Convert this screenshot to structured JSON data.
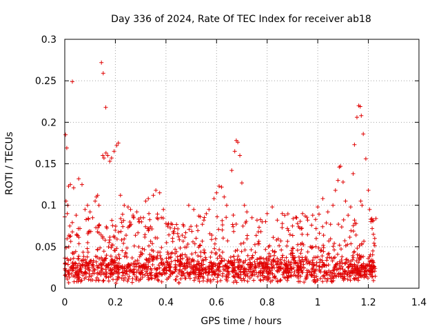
{
  "chart_data": {
    "type": "scatter",
    "title": "Day 336 of 2024, Rate Of TEC Index for receiver ab18",
    "xlabel": "GPS time / hours",
    "ylabel": "ROTI / TECUs",
    "xlim": [
      0,
      1.4
    ],
    "ylim": [
      0,
      0.3
    ],
    "xticks": [
      0,
      0.2,
      0.4,
      0.6,
      0.8,
      1,
      1.2,
      1.4
    ],
    "xtick_labels": [
      "0",
      "0.2",
      "0.4",
      "0.6",
      "0.8",
      "1",
      "1.2",
      "1.4"
    ],
    "yticks": [
      0,
      0.05,
      0.1,
      0.15,
      0.2,
      0.25,
      0.3
    ],
    "ytick_labels": [
      "0",
      "0.05",
      "0.1",
      "0.15",
      "0.2",
      "0.25",
      "0.3"
    ],
    "grid": true,
    "marker": "+",
    "marker_color": "#e00000",
    "series": [
      {
        "name": "ROTI",
        "points": [
          [
            0.003,
            0.185
          ],
          [
            0.008,
            0.169
          ],
          [
            0.005,
            0.105
          ],
          [
            0.012,
            0.1
          ],
          [
            0.015,
            0.123
          ],
          [
            0.022,
            0.125
          ],
          [
            0.03,
            0.249
          ],
          [
            0.035,
            0.121
          ],
          [
            0.055,
            0.132
          ],
          [
            0.068,
            0.125
          ],
          [
            0.01,
            0.09
          ],
          [
            0.02,
            0.075
          ],
          [
            0.03,
            0.068
          ],
          [
            0.045,
            0.088
          ],
          [
            0.06,
            0.072
          ],
          [
            0.08,
            0.095
          ],
          [
            0.09,
            0.1
          ],
          [
            0.1,
            0.092
          ],
          [
            0.11,
            0.085
          ],
          [
            0.12,
            0.105
          ],
          [
            0.125,
            0.11
          ],
          [
            0.13,
            0.112
          ],
          [
            0.135,
            0.1
          ],
          [
            0.145,
            0.272
          ],
          [
            0.152,
            0.259
          ],
          [
            0.162,
            0.218
          ],
          [
            0.15,
            0.16
          ],
          [
            0.155,
            0.157
          ],
          [
            0.163,
            0.163
          ],
          [
            0.17,
            0.16
          ],
          [
            0.178,
            0.153
          ],
          [
            0.185,
            0.157
          ],
          [
            0.195,
            0.165
          ],
          [
            0.205,
            0.172
          ],
          [
            0.212,
            0.175
          ],
          [
            0.15,
            0.062
          ],
          [
            0.16,
            0.058
          ],
          [
            0.175,
            0.055
          ],
          [
            0.19,
            0.052
          ],
          [
            0.205,
            0.048
          ],
          [
            0.22,
            0.112
          ],
          [
            0.235,
            0.1
          ],
          [
            0.25,
            0.098
          ],
          [
            0.26,
            0.095
          ],
          [
            0.27,
            0.088
          ],
          [
            0.285,
            0.092
          ],
          [
            0.3,
            0.085
          ],
          [
            0.32,
            0.105
          ],
          [
            0.33,
            0.108
          ],
          [
            0.35,
            0.112
          ],
          [
            0.36,
            0.118
          ],
          [
            0.375,
            0.115
          ],
          [
            0.39,
            0.095
          ],
          [
            0.4,
            0.078
          ],
          [
            0.41,
            0.078
          ],
          [
            0.42,
            0.078
          ],
          [
            0.43,
            0.066
          ],
          [
            0.45,
            0.062
          ],
          [
            0.47,
            0.075
          ],
          [
            0.49,
            0.1
          ],
          [
            0.51,
            0.095
          ],
          [
            0.53,
            0.087
          ],
          [
            0.55,
            0.082
          ],
          [
            0.57,
            0.095
          ],
          [
            0.59,
            0.108
          ],
          [
            0.6,
            0.115
          ],
          [
            0.61,
            0.123
          ],
          [
            0.62,
            0.122
          ],
          [
            0.63,
            0.11
          ],
          [
            0.64,
            0.1
          ],
          [
            0.66,
            0.142
          ],
          [
            0.672,
            0.165
          ],
          [
            0.678,
            0.178
          ],
          [
            0.684,
            0.176
          ],
          [
            0.692,
            0.16
          ],
          [
            0.7,
            0.127
          ],
          [
            0.71,
            0.1
          ],
          [
            0.72,
            0.092
          ],
          [
            0.74,
            0.085
          ],
          [
            0.76,
            0.082
          ],
          [
            0.78,
            0.08
          ],
          [
            0.8,
            0.09
          ],
          [
            0.82,
            0.098
          ],
          [
            0.84,
            0.082
          ],
          [
            0.86,
            0.078
          ],
          [
            0.88,
            0.072
          ],
          [
            0.9,
            0.075
          ],
          [
            0.92,
            0.078
          ],
          [
            0.94,
            0.09
          ],
          [
            0.96,
            0.082
          ],
          [
            0.98,
            0.088
          ],
          [
            1.0,
            0.098
          ],
          [
            1.02,
            0.108
          ],
          [
            1.04,
            0.092
          ],
          [
            1.06,
            0.1
          ],
          [
            1.07,
            0.118
          ],
          [
            1.08,
            0.13
          ],
          [
            1.085,
            0.146
          ],
          [
            1.09,
            0.147
          ],
          [
            1.1,
            0.128
          ],
          [
            1.11,
            0.105
          ],
          [
            1.12,
            0.088
          ],
          [
            1.13,
            0.098
          ],
          [
            1.14,
            0.138
          ],
          [
            1.145,
            0.173
          ],
          [
            1.155,
            0.206
          ],
          [
            1.162,
            0.22
          ],
          [
            1.168,
            0.219
          ],
          [
            1.172,
            0.208
          ],
          [
            1.18,
            0.186
          ],
          [
            1.19,
            0.156
          ],
          [
            1.2,
            0.118
          ],
          [
            1.205,
            0.095
          ],
          [
            1.21,
            0.083
          ],
          [
            1.215,
            0.072
          ],
          [
            1.22,
            0.065
          ],
          [
            1.225,
            0.06
          ],
          [
            1.23,
            0.084
          ],
          [
            1.17,
            0.105
          ],
          [
            1.175,
            0.1
          ]
        ]
      }
    ]
  }
}
